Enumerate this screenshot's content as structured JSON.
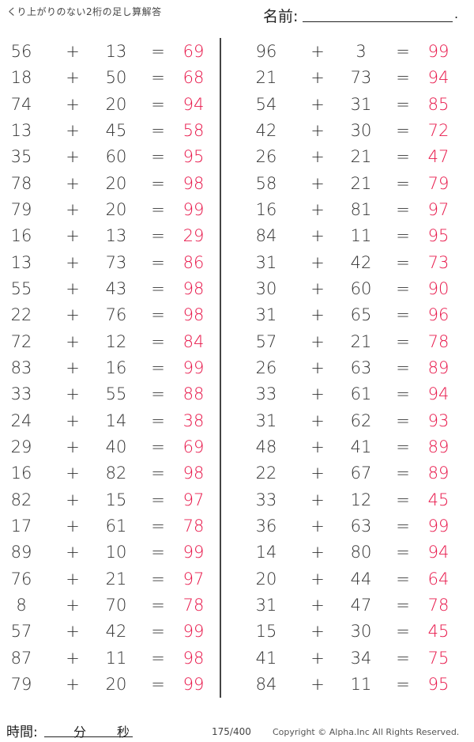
{
  "header": {
    "title": "くり上がりのない2桁の足し算解答",
    "name_label": "名前:",
    "name_end": "."
  },
  "symbols": {
    "plus": "+",
    "equals": "="
  },
  "colors": {
    "answer": "#e8174a",
    "text": "#333333"
  },
  "left_problems": [
    {
      "a": "56",
      "b": "13",
      "answer": "69"
    },
    {
      "a": "18",
      "b": "50",
      "answer": "68"
    },
    {
      "a": "74",
      "b": "20",
      "answer": "94"
    },
    {
      "a": "13",
      "b": "45",
      "answer": "58"
    },
    {
      "a": "35",
      "b": "60",
      "answer": "95"
    },
    {
      "a": "78",
      "b": "20",
      "answer": "98"
    },
    {
      "a": "79",
      "b": "20",
      "answer": "99"
    },
    {
      "a": "16",
      "b": "13",
      "answer": "29"
    },
    {
      "a": "13",
      "b": "73",
      "answer": "86"
    },
    {
      "a": "55",
      "b": "43",
      "answer": "98"
    },
    {
      "a": "22",
      "b": "76",
      "answer": "98"
    },
    {
      "a": "72",
      "b": "12",
      "answer": "84"
    },
    {
      "a": "83",
      "b": "16",
      "answer": "99"
    },
    {
      "a": "33",
      "b": "55",
      "answer": "88"
    },
    {
      "a": "24",
      "b": "14",
      "answer": "38"
    },
    {
      "a": "29",
      "b": "40",
      "answer": "69"
    },
    {
      "a": "16",
      "b": "82",
      "answer": "98"
    },
    {
      "a": "82",
      "b": "15",
      "answer": "97"
    },
    {
      "a": "17",
      "b": "61",
      "answer": "78"
    },
    {
      "a": "89",
      "b": "10",
      "answer": "99"
    },
    {
      "a": "76",
      "b": "21",
      "answer": "97"
    },
    {
      "a": "8",
      "b": "70",
      "answer": "78"
    },
    {
      "a": "57",
      "b": "42",
      "answer": "99"
    },
    {
      "a": "87",
      "b": "11",
      "answer": "98"
    },
    {
      "a": "79",
      "b": "20",
      "answer": "99"
    }
  ],
  "right_problems": [
    {
      "a": "96",
      "b": "3",
      "answer": "99"
    },
    {
      "a": "21",
      "b": "73",
      "answer": "94"
    },
    {
      "a": "54",
      "b": "31",
      "answer": "85"
    },
    {
      "a": "42",
      "b": "30",
      "answer": "72"
    },
    {
      "a": "26",
      "b": "21",
      "answer": "47"
    },
    {
      "a": "58",
      "b": "21",
      "answer": "79"
    },
    {
      "a": "16",
      "b": "81",
      "answer": "97"
    },
    {
      "a": "84",
      "b": "11",
      "answer": "95"
    },
    {
      "a": "31",
      "b": "42",
      "answer": "73"
    },
    {
      "a": "30",
      "b": "60",
      "answer": "90"
    },
    {
      "a": "31",
      "b": "65",
      "answer": "96"
    },
    {
      "a": "57",
      "b": "21",
      "answer": "78"
    },
    {
      "a": "26",
      "b": "63",
      "answer": "89"
    },
    {
      "a": "33",
      "b": "61",
      "answer": "94"
    },
    {
      "a": "31",
      "b": "62",
      "answer": "93"
    },
    {
      "a": "48",
      "b": "41",
      "answer": "89"
    },
    {
      "a": "22",
      "b": "67",
      "answer": "89"
    },
    {
      "a": "33",
      "b": "12",
      "answer": "45"
    },
    {
      "a": "36",
      "b": "63",
      "answer": "99"
    },
    {
      "a": "14",
      "b": "80",
      "answer": "94"
    },
    {
      "a": "20",
      "b": "44",
      "answer": "64"
    },
    {
      "a": "31",
      "b": "47",
      "answer": "78"
    },
    {
      "a": "15",
      "b": "30",
      "answer": "45"
    },
    {
      "a": "41",
      "b": "34",
      "answer": "75"
    },
    {
      "a": "84",
      "b": "11",
      "answer": "95"
    }
  ],
  "footer": {
    "time_label": "時間:",
    "minutes": "分",
    "seconds": "秒",
    "page": "175/400",
    "copyright": "Copyright ©  Alpha.Inc All Rights Reserved."
  }
}
